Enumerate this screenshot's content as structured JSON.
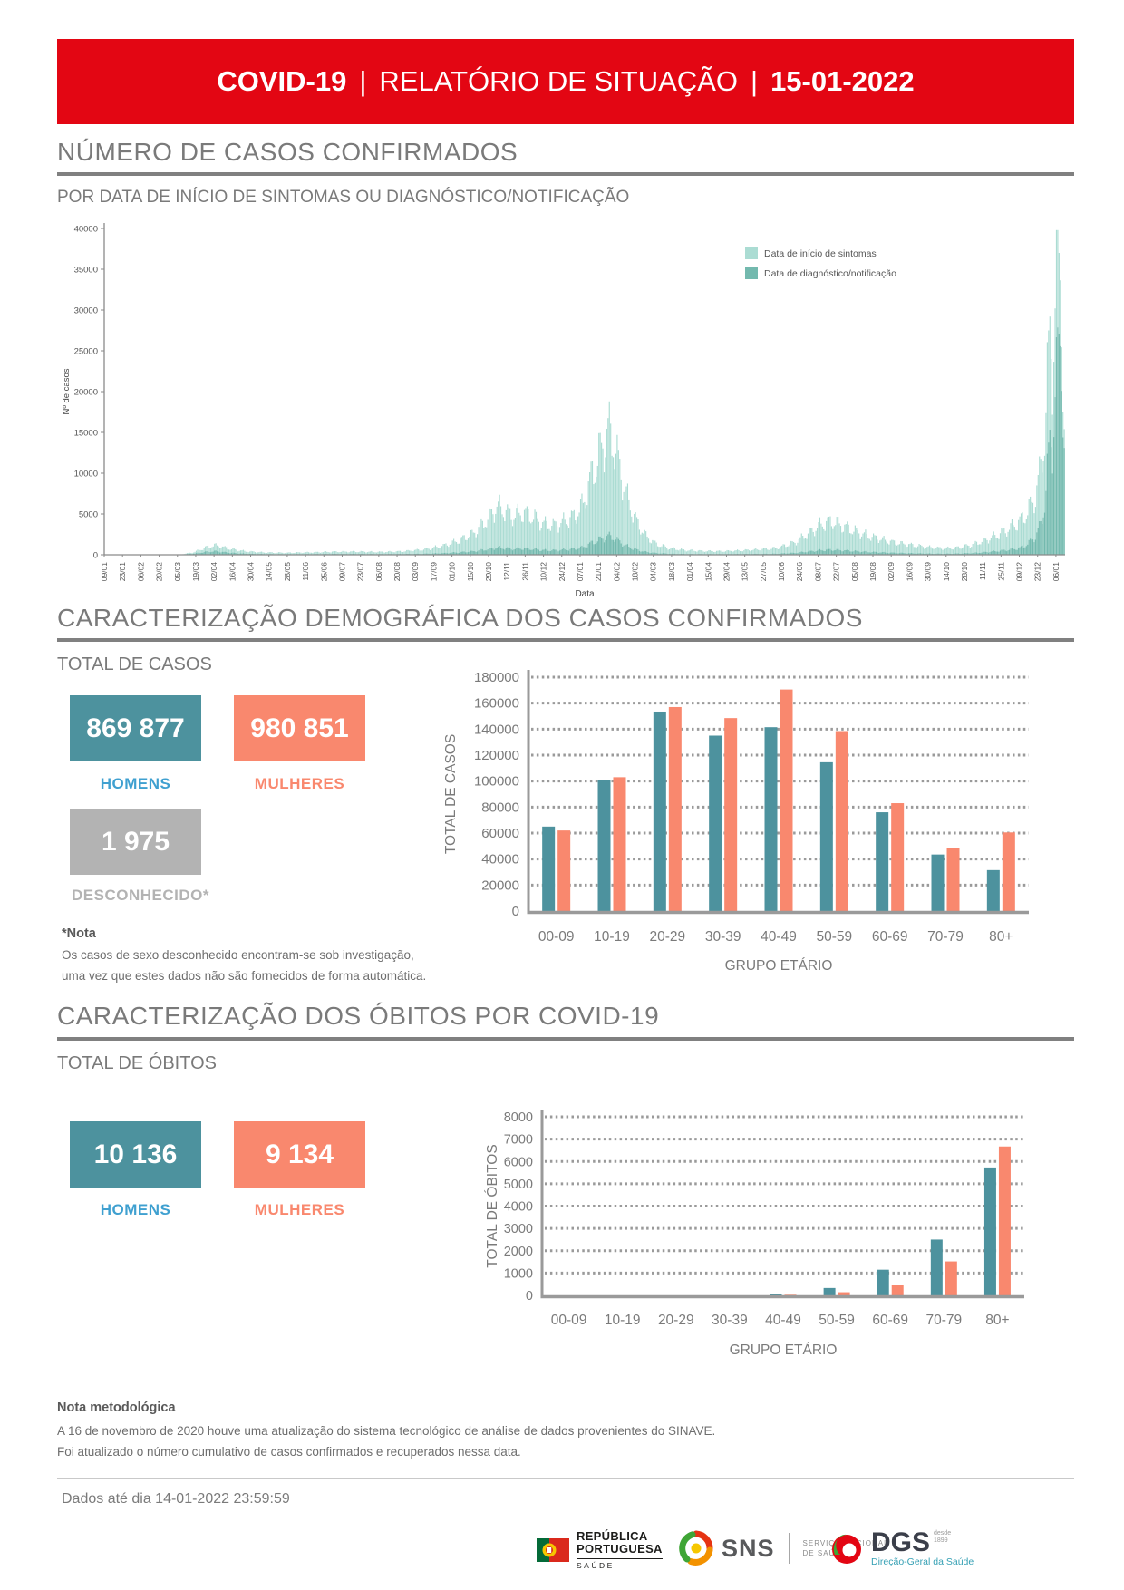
{
  "header": {
    "brand": "COVID-19",
    "sep": "|",
    "title": "RELATÓRIO DE SITUAÇÃO",
    "date": "15-01-2022"
  },
  "sections": {
    "cases_title": "NÚMERO DE CASOS CONFIRMADOS",
    "cases_subtitle": "POR DATA DE INÍCIO DE SINTOMAS OU DIAGNÓSTICO/NOTIFICAÇÃO",
    "demo_title": "CARACTERIZAÇÃO DEMOGRÁFICA DOS CASOS CONFIRMADOS",
    "demo_total_label": "TOTAL DE CASOS",
    "deaths_title": "CARACTERIZAÇÃO DOS ÓBITOS POR COVID-19",
    "deaths_total_label": "TOTAL DE ÓBITOS"
  },
  "totals_cases": {
    "men": "869 877",
    "men_label": "HOMENS",
    "women": "980 851",
    "women_label": "MULHERES",
    "unknown": "1 975",
    "unknown_label": "DESCONHECIDO*"
  },
  "totals_deaths": {
    "men": "10 136",
    "men_label": "HOMENS",
    "women": "9 134",
    "women_label": "MULHERES"
  },
  "note_cases": {
    "title": "*Nota",
    "line1": "Os casos de sexo desconhecido encontram-se sob investigação,",
    "line2": "uma vez que estes dados não são fornecidos de forma automática."
  },
  "footer": {
    "method_title": "Nota metodológica",
    "method_line1": "A 16 de novembro de 2020 houve uma atualização do sistema tecnológico de análise de dados provenientes do SINAVE.",
    "method_line2": "Foi atualizado o número cumulativo de casos confirmados e recuperados nessa data.",
    "data_until": "Dados até dia 14-01-2022 23:59:59",
    "logos": {
      "republica": {
        "line1": "REPÚBLICA",
        "line2": "PORTUGUESA",
        "sub": "SAÚDE"
      },
      "sns": {
        "abbr": "SNS",
        "sub1": "SERVIÇO NACIONAL",
        "sub2": "DE SAÚDE"
      },
      "dgs": {
        "abbr": "DGS",
        "since1": "desde",
        "since2": "1899",
        "sub": "Direção-Geral da Saúde"
      }
    }
  },
  "colors": {
    "banner_red": "#e30613",
    "teal_box": "#4d929e",
    "salmon": "#f9886e",
    "gray_box": "#b3b3b3",
    "light_teal_bars": "#abdcd3",
    "dark_teal_bars": "#73b9ae"
  },
  "chart_data": [
    {
      "type": "bar",
      "title": "POR DATA DE INÍCIO DE SINTOMAS OU DIAGNÓSTICO/NOTIFICAÇÃO",
      "xlabel": "Data",
      "ylabel": "Nº de casos",
      "ylim": [
        0,
        40000
      ],
      "ytick_step": 5000,
      "grid": false,
      "legend_position": "top-right-inside",
      "legend": [
        {
          "label": "Data de início de sintomas",
          "color": "#abdcd3"
        },
        {
          "label": "Data de diagnóstico/notificação",
          "color": "#73b9ae"
        }
      ],
      "n_days": 735,
      "tick_interval_days": 14,
      "x_tick_labels": [
        "09/01",
        "23/01",
        "06/02",
        "20/02",
        "05/03",
        "19/03",
        "02/04",
        "16/04",
        "30/04",
        "14/05",
        "28/05",
        "11/06",
        "25/06",
        "09/07",
        "23/07",
        "06/08",
        "20/08",
        "03/09",
        "17/09",
        "01/10",
        "15/10",
        "29/10",
        "12/11",
        "26/11",
        "10/12",
        "24/12",
        "07/01",
        "21/01",
        "04/02",
        "18/02",
        "04/03",
        "18/03",
        "01/04",
        "15/04",
        "29/04",
        "13/05",
        "27/05",
        "10/06",
        "24/06",
        "08/07",
        "22/07",
        "05/08",
        "19/08",
        "02/09",
        "16/09",
        "30/09",
        "14/10",
        "28/10",
        "11/11",
        "25/11",
        "09/12",
        "23/12",
        "06/01"
      ],
      "series_profile_keypoints": [
        [
          0,
          0
        ],
        [
          50,
          0
        ],
        [
          58,
          30
        ],
        [
          68,
          300
        ],
        [
          78,
          950
        ],
        [
          85,
          1150
        ],
        [
          95,
          750
        ],
        [
          108,
          420
        ],
        [
          122,
          280
        ],
        [
          140,
          240
        ],
        [
          160,
          300
        ],
        [
          178,
          380
        ],
        [
          195,
          380
        ],
        [
          212,
          340
        ],
        [
          228,
          420
        ],
        [
          244,
          650
        ],
        [
          258,
          1050
        ],
        [
          270,
          1700
        ],
        [
          282,
          2600
        ],
        [
          292,
          4200
        ],
        [
          300,
          5900
        ],
        [
          306,
          5400
        ],
        [
          312,
          4700
        ],
        [
          320,
          5200
        ],
        [
          328,
          4600
        ],
        [
          335,
          3800
        ],
        [
          344,
          3600
        ],
        [
          352,
          4100
        ],
        [
          360,
          4800
        ],
        [
          366,
          6200
        ],
        [
          372,
          9500
        ],
        [
          379,
          12500
        ],
        [
          385,
          15200
        ],
        [
          389,
          14000
        ],
        [
          394,
          10500
        ],
        [
          400,
          6800
        ],
        [
          407,
          4000
        ],
        [
          414,
          2300
        ],
        [
          422,
          1300
        ],
        [
          432,
          800
        ],
        [
          444,
          560
        ],
        [
          458,
          460
        ],
        [
          472,
          430
        ],
        [
          486,
          520
        ],
        [
          500,
          640
        ],
        [
          514,
          820
        ],
        [
          528,
          1500
        ],
        [
          538,
          2600
        ],
        [
          548,
          3700
        ],
        [
          556,
          4100
        ],
        [
          564,
          3600
        ],
        [
          574,
          2900
        ],
        [
          584,
          2300
        ],
        [
          594,
          1900
        ],
        [
          604,
          1500
        ],
        [
          614,
          1250
        ],
        [
          624,
          1050
        ],
        [
          634,
          850
        ],
        [
          644,
          780
        ],
        [
          654,
          900
        ],
        [
          664,
          1250
        ],
        [
          674,
          1800
        ],
        [
          684,
          2500
        ],
        [
          692,
          3200
        ],
        [
          700,
          4100
        ],
        [
          706,
          5200
        ],
        [
          712,
          7200
        ],
        [
          716,
          10500
        ],
        [
          719,
          15000
        ],
        [
          721,
          21000
        ],
        [
          723,
          26500
        ],
        [
          725,
          24000
        ],
        [
          727,
          30000
        ],
        [
          728,
          36000
        ],
        [
          729,
          39000
        ],
        [
          730,
          35000
        ],
        [
          731,
          38000
        ],
        [
          732,
          30000
        ],
        [
          733,
          23000
        ],
        [
          734,
          15000
        ]
      ],
      "diagnostico_share_keypoints": [
        [
          0,
          0.45
        ],
        [
          60,
          0.45
        ],
        [
          120,
          0.25
        ],
        [
          300,
          0.15
        ],
        [
          640,
          0.15
        ],
        [
          700,
          0.2
        ],
        [
          716,
          0.35
        ],
        [
          724,
          0.55
        ],
        [
          734,
          0.85
        ]
      ]
    },
    {
      "type": "bar",
      "categories": [
        "00-09",
        "10-19",
        "20-29",
        "30-39",
        "40-49",
        "50-59",
        "60-69",
        "70-79",
        "80+"
      ],
      "series": [
        {
          "name": "Homens",
          "color": "#4d929e",
          "values": [
            65000,
            101000,
            153500,
            135000,
            141500,
            114500,
            76000,
            43500,
            31500
          ]
        },
        {
          "name": "Mulheres",
          "color": "#f9886e",
          "values": [
            62000,
            103000,
            157000,
            148500,
            170500,
            138500,
            83000,
            48500,
            60500
          ]
        }
      ],
      "xlabel": "GRUPO ETÁRIO",
      "ylabel": "TOTAL DE CASOS",
      "ylim": [
        0,
        180000
      ],
      "ytick_step": 20000,
      "grid": "dotted-horizontal",
      "legend_position": "none"
    },
    {
      "type": "bar",
      "categories": [
        "00-09",
        "10-19",
        "20-29",
        "30-39",
        "40-49",
        "50-59",
        "60-69",
        "70-79",
        "80+"
      ],
      "series": [
        {
          "name": "Homens",
          "color": "#4d929e",
          "values": [
            2,
            1,
            5,
            16,
            60,
            330,
            1150,
            2500,
            5730
          ]
        },
        {
          "name": "Mulheres",
          "color": "#f9886e",
          "values": [
            1,
            1,
            3,
            10,
            30,
            140,
            450,
            1520,
            6670
          ]
        }
      ],
      "xlabel": "GRUPO ETÁRIO",
      "ylabel": "TOTAL DE ÓBITOS",
      "ylim": [
        0,
        8000
      ],
      "ytick_step": 1000,
      "grid": "dotted-horizontal",
      "legend_position": "none"
    }
  ]
}
